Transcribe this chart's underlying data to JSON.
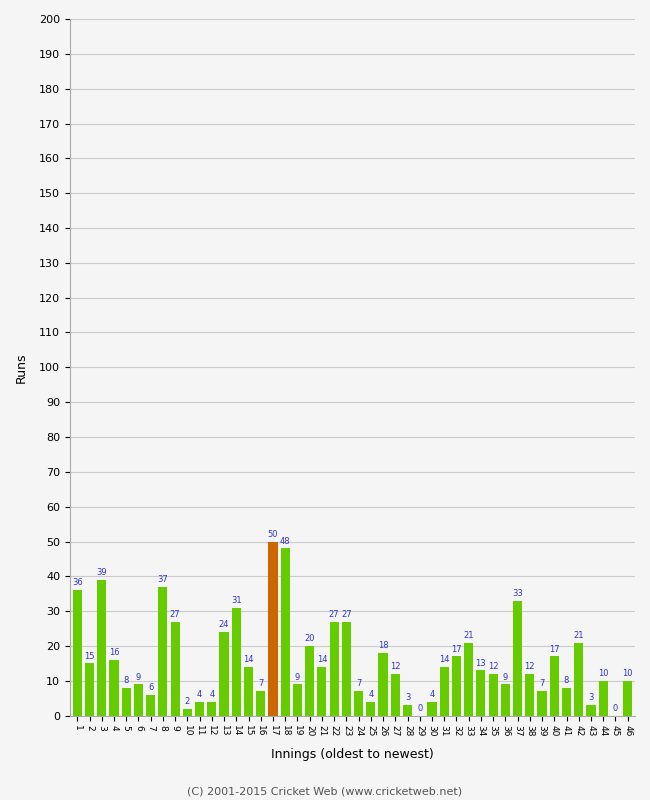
{
  "innings": [
    1,
    2,
    3,
    4,
    5,
    6,
    7,
    8,
    9,
    10,
    11,
    12,
    13,
    14,
    15,
    16,
    17,
    18,
    19,
    20,
    21,
    22,
    23,
    24,
    25,
    26,
    27,
    28,
    29,
    30,
    31,
    32,
    33,
    34,
    35,
    36,
    37,
    38,
    39,
    40,
    41,
    42,
    43,
    44,
    45,
    46
  ],
  "values": [
    36,
    15,
    39,
    16,
    8,
    9,
    6,
    37,
    27,
    2,
    4,
    4,
    24,
    31,
    14,
    7,
    50,
    48,
    9,
    20,
    14,
    27,
    27,
    7,
    4,
    18,
    12,
    3,
    0,
    4,
    14,
    17,
    21,
    13,
    12,
    9,
    33,
    12,
    7,
    17,
    8,
    21,
    3,
    10,
    0,
    10
  ],
  "bar_colors": [
    "#66cc00",
    "#66cc00",
    "#66cc00",
    "#66cc00",
    "#66cc00",
    "#66cc00",
    "#66cc00",
    "#66cc00",
    "#66cc00",
    "#66cc00",
    "#66cc00",
    "#66cc00",
    "#66cc00",
    "#66cc00",
    "#66cc00",
    "#66cc00",
    "#cc6600",
    "#66cc00",
    "#66cc00",
    "#66cc00",
    "#66cc00",
    "#66cc00",
    "#66cc00",
    "#66cc00",
    "#66cc00",
    "#66cc00",
    "#66cc00",
    "#66cc00",
    "#66cc00",
    "#66cc00",
    "#66cc00",
    "#66cc00",
    "#66cc00",
    "#66cc00",
    "#66cc00",
    "#66cc00",
    "#66cc00",
    "#66cc00",
    "#66cc00",
    "#66cc00",
    "#66cc00",
    "#66cc00",
    "#66cc00",
    "#66cc00",
    "#66cc00",
    "#66cc00"
  ],
  "xlabel": "Innings (oldest to newest)",
  "ylabel": "Runs",
  "ylim": [
    0,
    200
  ],
  "yticks": [
    0,
    10,
    20,
    30,
    40,
    50,
    60,
    70,
    80,
    90,
    100,
    110,
    120,
    130,
    140,
    150,
    160,
    170,
    180,
    190,
    200
  ],
  "footer": "(C) 2001-2015 Cricket Web (www.cricketweb.net)",
  "label_color": "#3333cc",
  "bar_width": 0.75,
  "bg_color": "#f5f5f5",
  "grid_color": "#cccccc"
}
